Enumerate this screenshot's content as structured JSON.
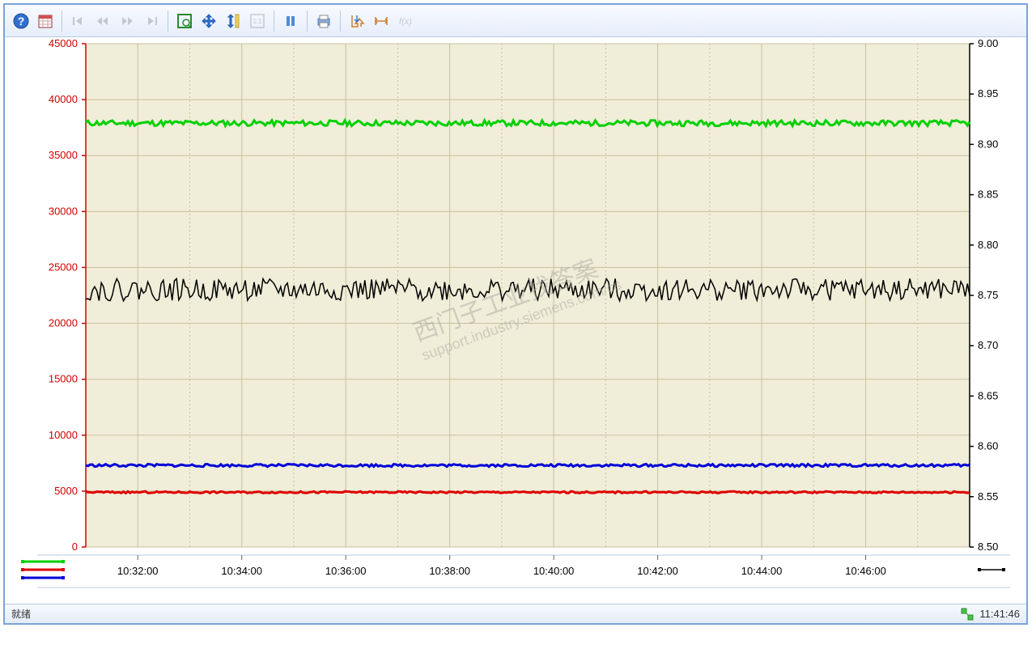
{
  "toolbar": {
    "help": "help",
    "calendar": "calendar",
    "nav_first": "first",
    "nav_back": "back",
    "nav_fwd": "forward",
    "nav_last": "last",
    "zoom_area": "zoom-area",
    "pan": "pan",
    "zoom_y": "zoom-y",
    "fit": "1:1",
    "pause": "pause",
    "print": "print",
    "export": "export",
    "ruler": "ruler",
    "fx": "f(x)"
  },
  "chart": {
    "type": "line",
    "background_color": "#f0edd8",
    "grid_color": "#c7c2a1",
    "left_axis": {
      "color": "#d00000",
      "min": 0,
      "max": 45000,
      "step": 5000,
      "tick_labels": [
        "0",
        "5000",
        "10000",
        "15000",
        "20000",
        "25000",
        "30000",
        "35000",
        "40000",
        "45000"
      ],
      "fontsize": 13
    },
    "right_axis": {
      "color": "#000000",
      "min": 8.5,
      "max": 9.0,
      "step": 0.05,
      "tick_labels": [
        "8.50",
        "8.55",
        "8.60",
        "8.65",
        "8.70",
        "8.75",
        "8.80",
        "8.85",
        "8.90",
        "8.95",
        "9.00"
      ],
      "fontsize": 13
    },
    "x_axis": {
      "tick_labels": [
        "10:32:00",
        "10:34:00",
        "10:36:00",
        "10:38:00",
        "10:40:00",
        "10:42:00",
        "10:44:00",
        "10:46:00"
      ],
      "fontsize": 13
    },
    "series": {
      "green": {
        "color": "#00d000",
        "axis": "left",
        "mean": 37900,
        "noise_amp": 250,
        "line_width": 3
      },
      "black": {
        "color": "#000000",
        "axis": "left",
        "mean": 23000,
        "noise_amp": 1000,
        "line_width": 1.5
      },
      "blue": {
        "color": "#0000d8",
        "axis": "left",
        "mean": 7300,
        "noise_amp": 120,
        "line_width": 3
      },
      "red": {
        "color": "#e00000",
        "axis": "left",
        "mean": 4900,
        "noise_amp": 80,
        "line_width": 3
      }
    }
  },
  "status": {
    "text": "就绪",
    "time": "11:41:46"
  },
  "watermark": {
    "top": "西门子工业找答案",
    "bottom": "support.industry.siemens.com/cs"
  }
}
